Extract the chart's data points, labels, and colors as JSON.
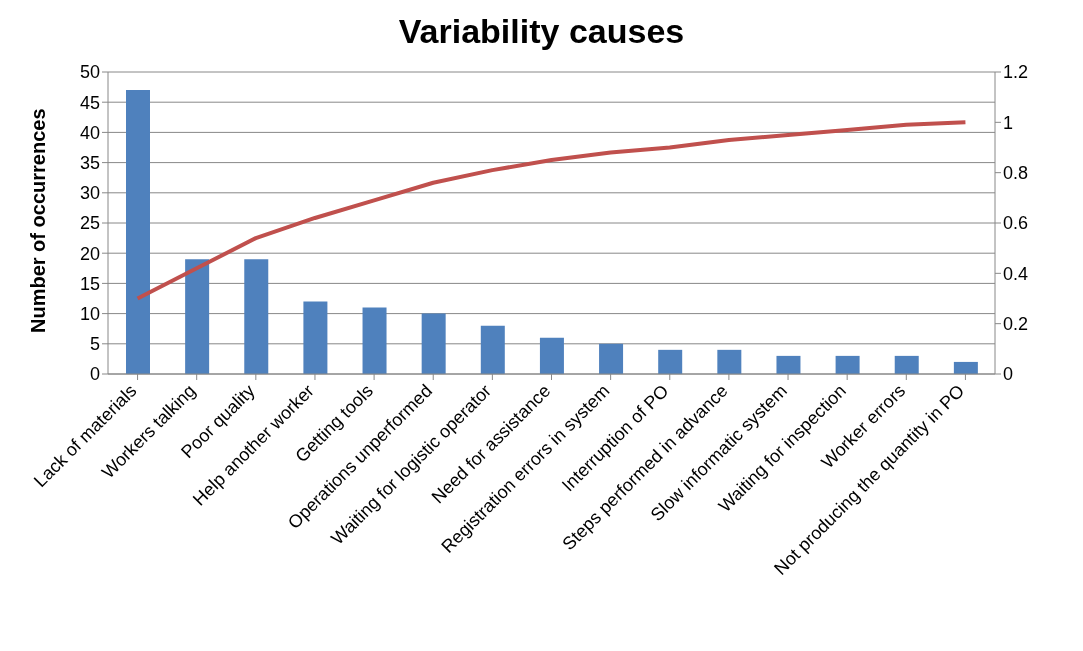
{
  "chart_data": {
    "type": "bar",
    "title": "Variability causes",
    "ylabel": "Number of occurrences",
    "categories": [
      "Lack of materials",
      "Workers talking",
      "Poor quality",
      "Help another worker",
      "Getting tools",
      "Operations unperformed",
      "Waiting for logistic operator",
      "Need for assistance",
      "Registration errors in system",
      "Interruption of PO",
      "Steps performed in advance",
      "Slow informatic system",
      "Waiting for inspection",
      "Worker errors",
      "Not producing the quantity in PO"
    ],
    "series": [
      {
        "color": "#4f81bd",
        "values": [
          47,
          19,
          19,
          12,
          11,
          10,
          8,
          6,
          5,
          4,
          4,
          3,
          3,
          3,
          2
        ]
      },
      {
        "type": "line",
        "axis": "y2",
        "color": "#c0504d",
        "values": [
          0.3,
          0.42,
          0.54,
          0.62,
          0.69,
          0.76,
          0.81,
          0.85,
          0.88,
          0.9,
          0.93,
          0.95,
          0.97,
          0.99,
          1.0
        ]
      }
    ],
    "ylim": [
      0,
      50
    ],
    "yticks": [
      0,
      5,
      10,
      15,
      20,
      25,
      30,
      35,
      40,
      45,
      50
    ],
    "y2lim": [
      0,
      1.2
    ],
    "y2ticks": [
      0,
      0.2,
      0.4,
      0.6,
      0.8,
      1,
      1.2
    ],
    "grid": "y",
    "legend": false,
    "marker": "none"
  }
}
